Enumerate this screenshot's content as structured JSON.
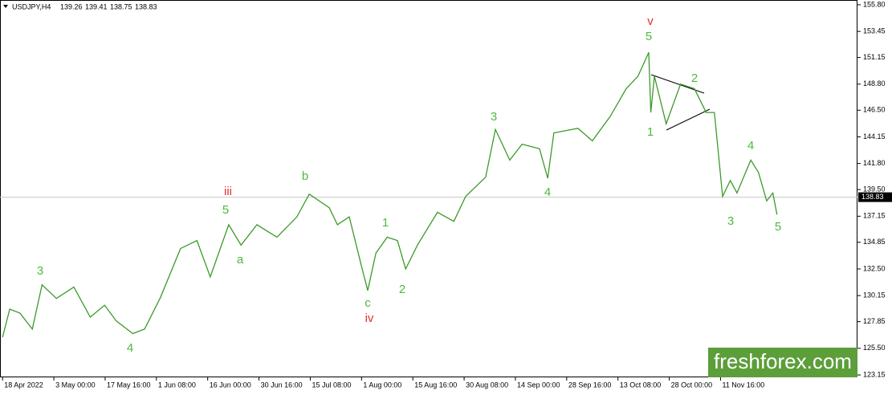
{
  "chart_data": {
    "type": "line",
    "header": {
      "symbol": "USDJPY,H4",
      "open": 139.26,
      "high": 139.41,
      "low": 138.75,
      "close": 138.83
    },
    "x": [
      0,
      0.14,
      0.34,
      0.58,
      0.77,
      1.05,
      1.39,
      1.71,
      1.99,
      2.22,
      2.54,
      2.77,
      3.08,
      3.47,
      3.79,
      4.05,
      4.41,
      4.65,
      4.96,
      5.35,
      5.74,
      5.98,
      6.37,
      6.53,
      6.76,
      6.99,
      7.12,
      7.28,
      7.5,
      7.7,
      7.86,
      8.09,
      8.48,
      8.8,
      9.03,
      9.42,
      9.61,
      9.89,
      10.13,
      10.47,
      10.63,
      10.75,
      11.22,
      11.5,
      11.85,
      12.16,
      12.39,
      12.6,
      12.64,
      12.71,
      12.94,
      13.22,
      13.49,
      13.72,
      13.88,
      14.04,
      14.19,
      14.32,
      14.59,
      14.74,
      14.9,
      15.02,
      15.1
    ],
    "series": [
      {
        "name": "USDJPY",
        "color": "#3c9a2a",
        "values": [
          126.48,
          128.96,
          128.6,
          127.2,
          131.1,
          129.9,
          130.9,
          128.25,
          129.3,
          127.9,
          126.8,
          127.2,
          130.0,
          134.3,
          135.0,
          131.8,
          136.4,
          134.6,
          136.4,
          135.3,
          137.1,
          139.1,
          137.9,
          136.4,
          137.1,
          132.9,
          130.6,
          133.9,
          135.3,
          135.0,
          132.5,
          134.6,
          137.5,
          136.7,
          138.9,
          140.6,
          144.8,
          142.1,
          143.5,
          143.1,
          140.5,
          144.5,
          144.9,
          143.8,
          145.96,
          148.4,
          149.5,
          151.6,
          146.3,
          149.5,
          145.3,
          148.8,
          148.4,
          146.3,
          146.3,
          138.9,
          140.3,
          139.2,
          142.1,
          141.0,
          138.5,
          139.2,
          137.3
        ]
      }
    ],
    "xlim": [
      -0.05,
      16.67
    ],
    "xticks": [
      {
        "value": 0,
        "label": "18 Apr 2022"
      },
      {
        "value": 1,
        "label": "3 May 00:00"
      },
      {
        "value": 2,
        "label": "17 May 16:00"
      },
      {
        "value": 3,
        "label": "1 Jun 08:00"
      },
      {
        "value": 4,
        "label": "16 Jun 00:00"
      },
      {
        "value": 5,
        "label": "30 Jun 16:00"
      },
      {
        "value": 6,
        "label": "15 Jul 08:00"
      },
      {
        "value": 7,
        "label": "1 Aug 00:00"
      },
      {
        "value": 8,
        "label": "15 Aug 16:00"
      },
      {
        "value": 9,
        "label": "30 Aug 08:00"
      },
      {
        "value": 10,
        "label": "14 Sep 00:00"
      },
      {
        "value": 11,
        "label": "28 Sep 16:00"
      },
      {
        "value": 12,
        "label": "13 Oct 08:00"
      },
      {
        "value": 13,
        "label": "28 Oct 00:00"
      },
      {
        "value": 14,
        "label": "11 Nov 16:00"
      }
    ],
    "ylim": [
      122.94,
      156.22
    ],
    "yticks": [
      {
        "value": 155.8,
        "label": "155.80"
      },
      153.45,
      151.15,
      {
        "value": 148.8,
        "label": "148.80"
      },
      {
        "value": 146.5,
        "label": "146.50"
      },
      144.15,
      {
        "value": 141.8,
        "label": "141.80"
      },
      {
        "value": 139.5,
        "label": "139.50"
      },
      137.15,
      134.85,
      {
        "value": 132.5,
        "label": "132.50"
      },
      130.15,
      127.85,
      {
        "value": 125.5,
        "label": "125.50"
      },
      123.15
    ],
    "annotations": [
      {
        "text": "v",
        "color": "#e03030"
      },
      {
        "text": "5",
        "color": "#4cbb3c"
      },
      {
        "text": "2",
        "color": "#4cbb3c"
      },
      {
        "text": "1",
        "color": "#4cbb3c"
      },
      {
        "text": "3",
        "color": "#4cbb3c"
      },
      {
        "text": "4",
        "color": "#4cbb3c"
      },
      {
        "text": "4",
        "color": "#4cbb3c"
      },
      {
        "text": "3",
        "color": "#4cbb3c"
      },
      {
        "text": "5",
        "color": "#4cbb3c"
      },
      {
        "text": "b",
        "color": "#4cbb3c"
      },
      {
        "text": "iii",
        "color": "#e03030"
      },
      {
        "text": "5",
        "color": "#4cbb3c"
      },
      {
        "text": "a",
        "color": "#4cbb3c"
      },
      {
        "text": "1",
        "color": "#4cbb3c"
      },
      {
        "text": "2",
        "color": "#4cbb3c"
      },
      {
        "text": "c",
        "color": "#4cbb3c"
      },
      {
        "text": "iv",
        "color": "#e03030"
      },
      {
        "text": "3",
        "color": "#4cbb3c"
      },
      {
        "text": "4",
        "color": "#4cbb3c"
      }
    ],
    "watermark": "freshforex.com"
  }
}
